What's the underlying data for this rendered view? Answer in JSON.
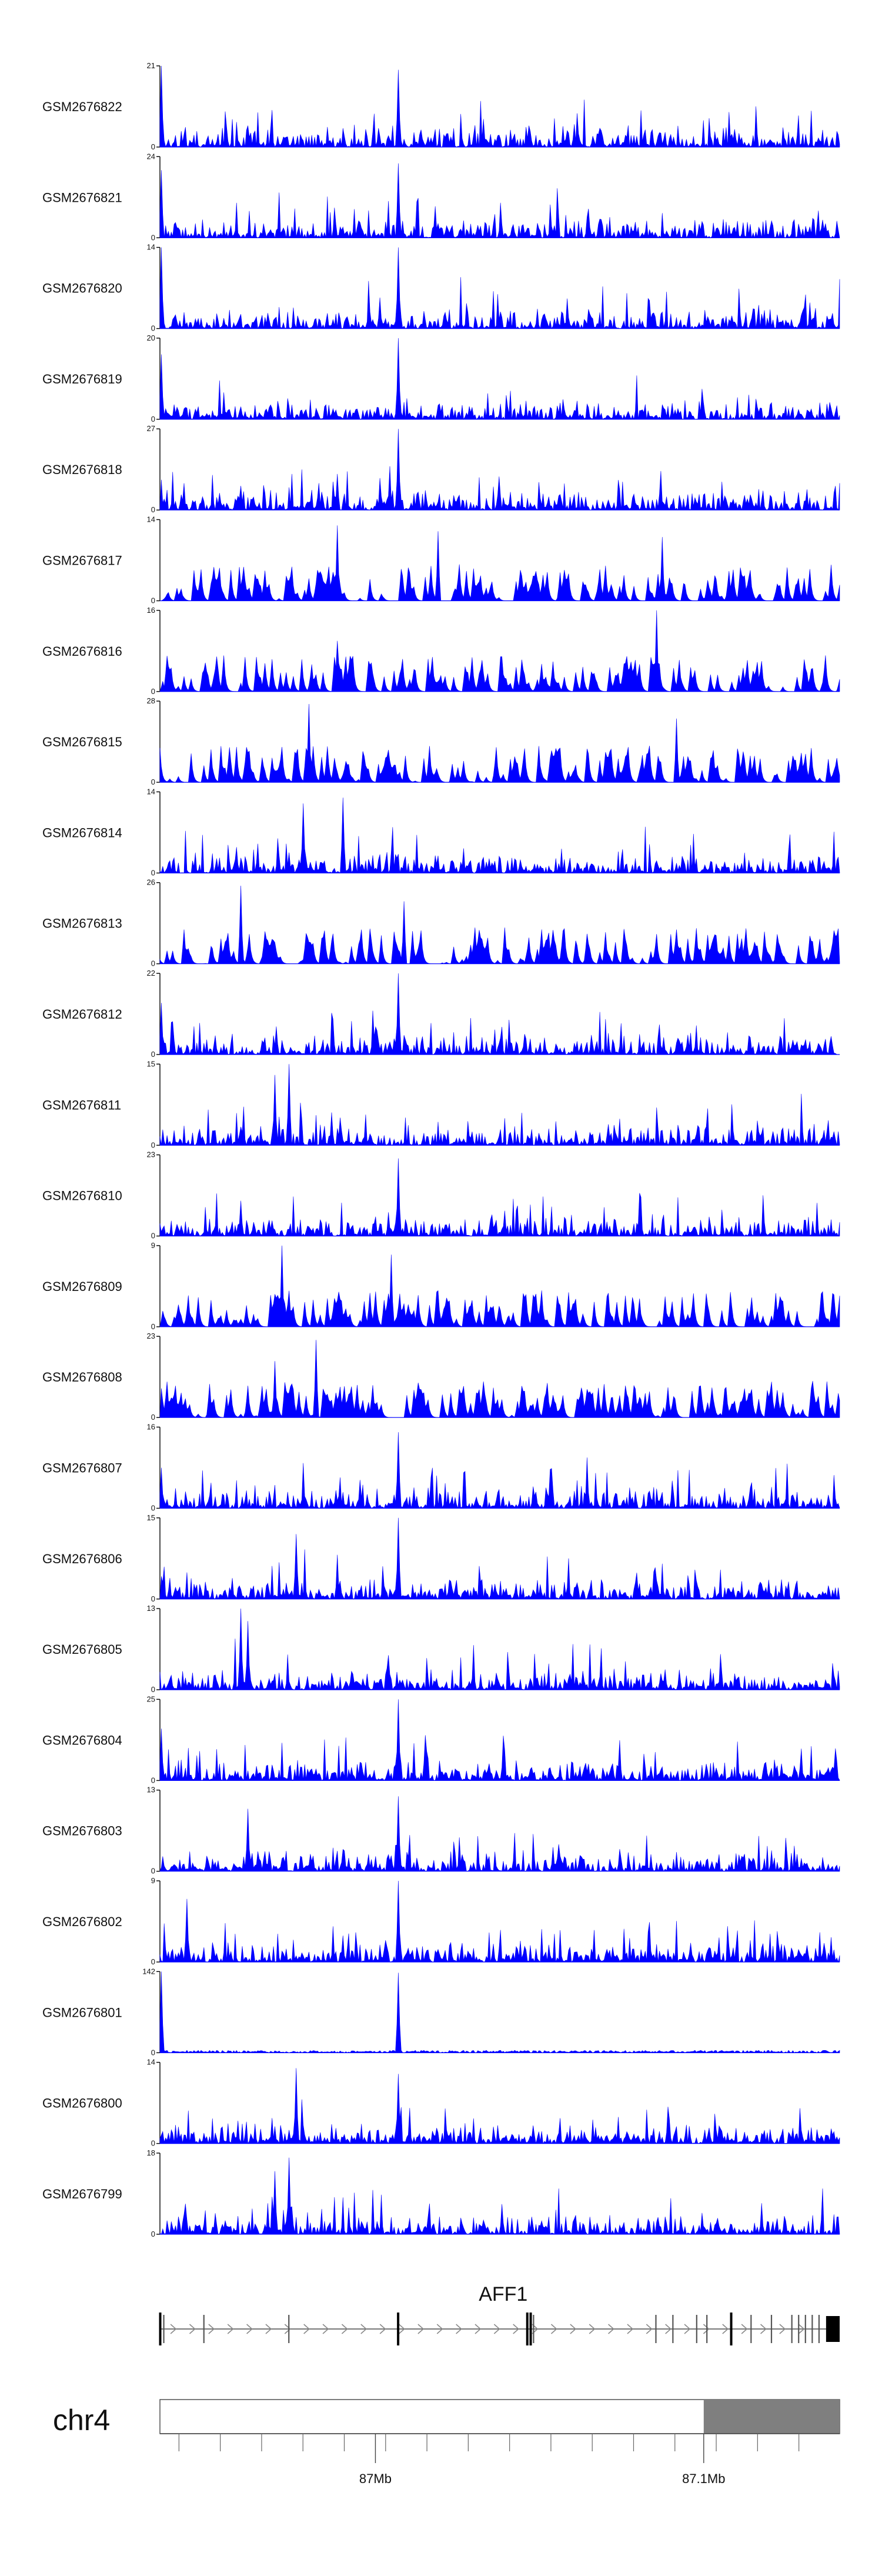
{
  "chart_data": {
    "type": "area",
    "description_kind": "genome-browser coverage tracks",
    "color": "#0000ff",
    "tracks": [
      {
        "label": "GSM2676822",
        "ymax": 21,
        "ymin": 0,
        "peaks": [
          [
            0.002,
            21
          ],
          [
            0.35,
            20
          ]
        ]
      },
      {
        "label": "GSM2676821",
        "ymax": 24,
        "ymin": 0,
        "peaks": [
          [
            0.002,
            20
          ],
          [
            0.35,
            22
          ]
        ]
      },
      {
        "label": "GSM2676820",
        "ymax": 14,
        "ymin": 0,
        "peaks": [
          [
            0.002,
            14
          ],
          [
            0.35,
            14
          ]
        ]
      },
      {
        "label": "GSM2676819",
        "ymax": 20,
        "ymin": 0,
        "peaks": [
          [
            0.002,
            16
          ],
          [
            0.35,
            20
          ]
        ]
      },
      {
        "label": "GSM2676818",
        "ymax": 27,
        "ymin": 0,
        "peaks": [
          [
            0.35,
            27
          ],
          [
            0.26,
            12
          ]
        ]
      },
      {
        "label": "GSM2676817",
        "ymax": 14,
        "ymin": 0,
        "peaks": [
          [
            0.26,
            13
          ],
          [
            0.41,
            12
          ],
          [
            0.74,
            11
          ]
        ]
      },
      {
        "label": "GSM2676816",
        "ymax": 16,
        "ymin": 0,
        "peaks": [
          [
            0.73,
            16
          ],
          [
            0.26,
            10
          ]
        ]
      },
      {
        "label": "GSM2676815",
        "ymax": 28,
        "ymin": 0,
        "peaks": [
          [
            0.22,
            27
          ],
          [
            0.76,
            22
          ]
        ]
      },
      {
        "label": "GSM2676814",
        "ymax": 14,
        "ymin": 0,
        "peaks": [
          [
            0.27,
            13
          ],
          [
            0.21,
            12
          ]
        ]
      },
      {
        "label": "GSM2676813",
        "ymax": 26,
        "ymin": 0,
        "peaks": [
          [
            0.12,
            25
          ],
          [
            0.36,
            20
          ]
        ]
      },
      {
        "label": "GSM2676812",
        "ymax": 22,
        "ymin": 0,
        "peaks": [
          [
            0.35,
            22
          ],
          [
            0.002,
            14
          ]
        ]
      },
      {
        "label": "GSM2676811",
        "ymax": 15,
        "ymin": 0,
        "peaks": [
          [
            0.19,
            15
          ],
          [
            0.17,
            13
          ]
        ]
      },
      {
        "label": "GSM2676810",
        "ymax": 23,
        "ymin": 0,
        "peaks": [
          [
            0.35,
            22
          ],
          [
            0.12,
            10
          ]
        ]
      },
      {
        "label": "GSM2676809",
        "ymax": 9,
        "ymin": 0,
        "peaks": [
          [
            0.18,
            9
          ],
          [
            0.34,
            8
          ]
        ]
      },
      {
        "label": "GSM2676808",
        "ymax": 23,
        "ymin": 0,
        "peaks": [
          [
            0.23,
            22
          ],
          [
            0.17,
            16
          ]
        ]
      },
      {
        "label": "GSM2676807",
        "ymax": 16,
        "ymin": 0,
        "peaks": [
          [
            0.35,
            15
          ],
          [
            0.002,
            8
          ]
        ]
      },
      {
        "label": "GSM2676806",
        "ymax": 15,
        "ymin": 0,
        "peaks": [
          [
            0.35,
            15
          ],
          [
            0.2,
            12
          ]
        ]
      },
      {
        "label": "GSM2676805",
        "ymax": 13,
        "ymin": 0,
        "peaks": [
          [
            0.12,
            13
          ],
          [
            0.13,
            11
          ]
        ]
      },
      {
        "label": "GSM2676804",
        "ymax": 25,
        "ymin": 0,
        "peaks": [
          [
            0.35,
            25
          ],
          [
            0.002,
            16
          ]
        ]
      },
      {
        "label": "GSM2676803",
        "ymax": 13,
        "ymin": 0,
        "peaks": [
          [
            0.35,
            12
          ],
          [
            0.13,
            10
          ]
        ]
      },
      {
        "label": "GSM2676802",
        "ymax": 9,
        "ymin": 0,
        "peaks": [
          [
            0.35,
            9
          ],
          [
            0.04,
            7
          ]
        ]
      },
      {
        "label": "GSM2676801",
        "ymax": 142,
        "ymin": 0,
        "peaks": [
          [
            0.002,
            142
          ],
          [
            0.35,
            140
          ]
        ]
      },
      {
        "label": "GSM2676800",
        "ymax": 14,
        "ymin": 0,
        "peaks": [
          [
            0.35,
            12
          ],
          [
            0.2,
            13
          ]
        ]
      },
      {
        "label": "GSM2676799",
        "ymax": 18,
        "ymin": 0,
        "peaks": [
          [
            0.19,
            17
          ],
          [
            0.17,
            14
          ]
        ]
      }
    ],
    "gene": {
      "name": "AFF1",
      "strand": "+",
      "exons": [
        0.0,
        0.006,
        0.065,
        0.19,
        0.35,
        0.54,
        0.545,
        0.55,
        0.73,
        0.755,
        0.79,
        0.805,
        0.84,
        0.87,
        0.9,
        0.93,
        0.94,
        0.95,
        0.96,
        0.97
      ],
      "utr_end": 0.98
    },
    "ideogram": {
      "chromosome": "chr4",
      "ticks": [
        {
          "label": "87Mb",
          "frac": 0.317
        },
        {
          "label": "87.1Mb",
          "frac": 0.8
        }
      ],
      "highlight_from_frac": 0.8
    }
  }
}
